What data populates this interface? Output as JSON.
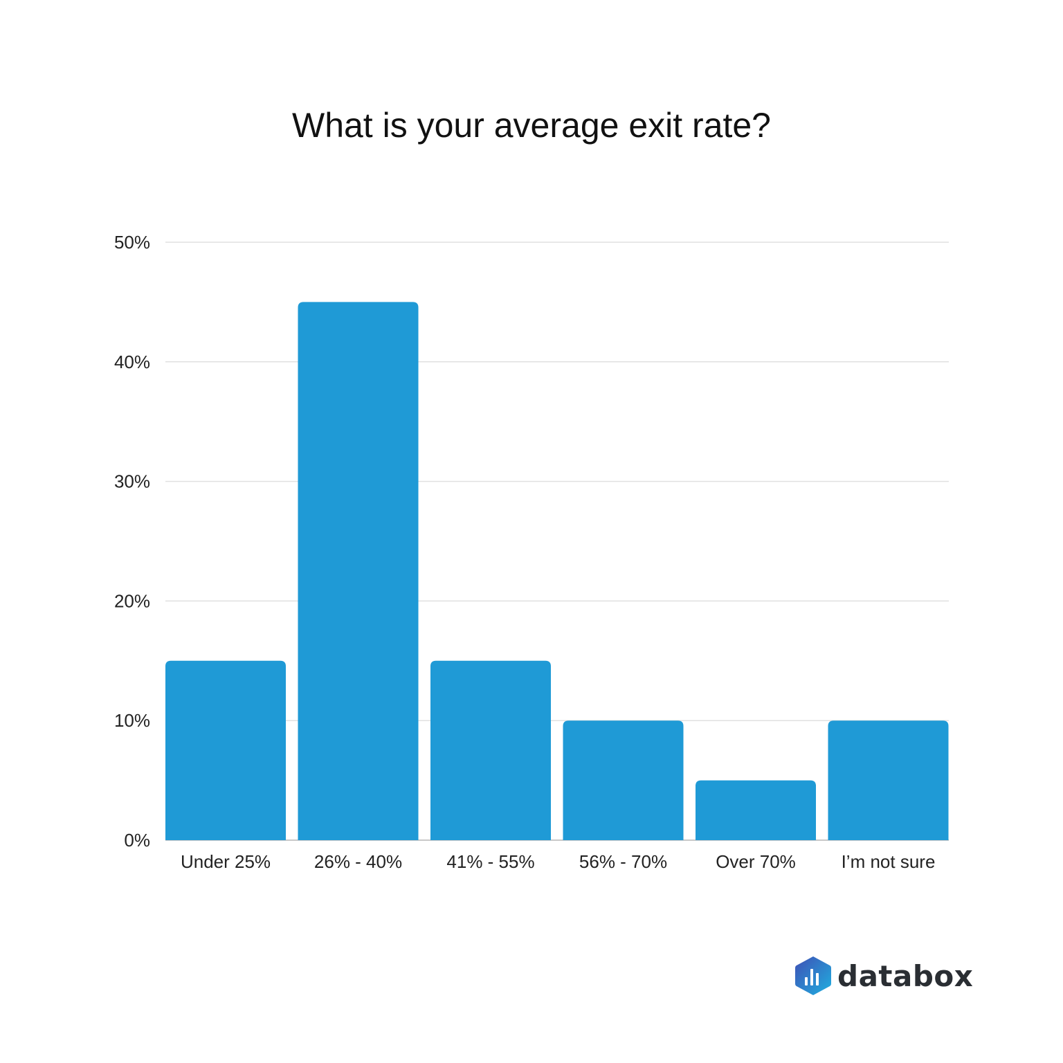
{
  "chart_data": {
    "type": "bar",
    "title": "What is your average exit rate?",
    "xlabel": "",
    "ylabel": "",
    "categories": [
      "Under 25%",
      "26% - 40%",
      "41% - 55%",
      "56% - 70%",
      "Over 70%",
      "I’m not sure"
    ],
    "values": [
      15,
      45,
      15,
      10,
      5,
      10
    ],
    "value_unit": "%",
    "ylim": [
      0,
      50
    ],
    "yticks": [
      0,
      10,
      20,
      30,
      40,
      50
    ],
    "ytick_labels": [
      "0%",
      "10%",
      "20%",
      "30%",
      "40%",
      "50%"
    ],
    "grid": true,
    "bar_color": "#1f9ad6",
    "grid_color": "#e0e0e0"
  },
  "brand": {
    "name": "databox",
    "logo_colors": [
      "#3f4fb5",
      "#1fa6dc"
    ]
  }
}
